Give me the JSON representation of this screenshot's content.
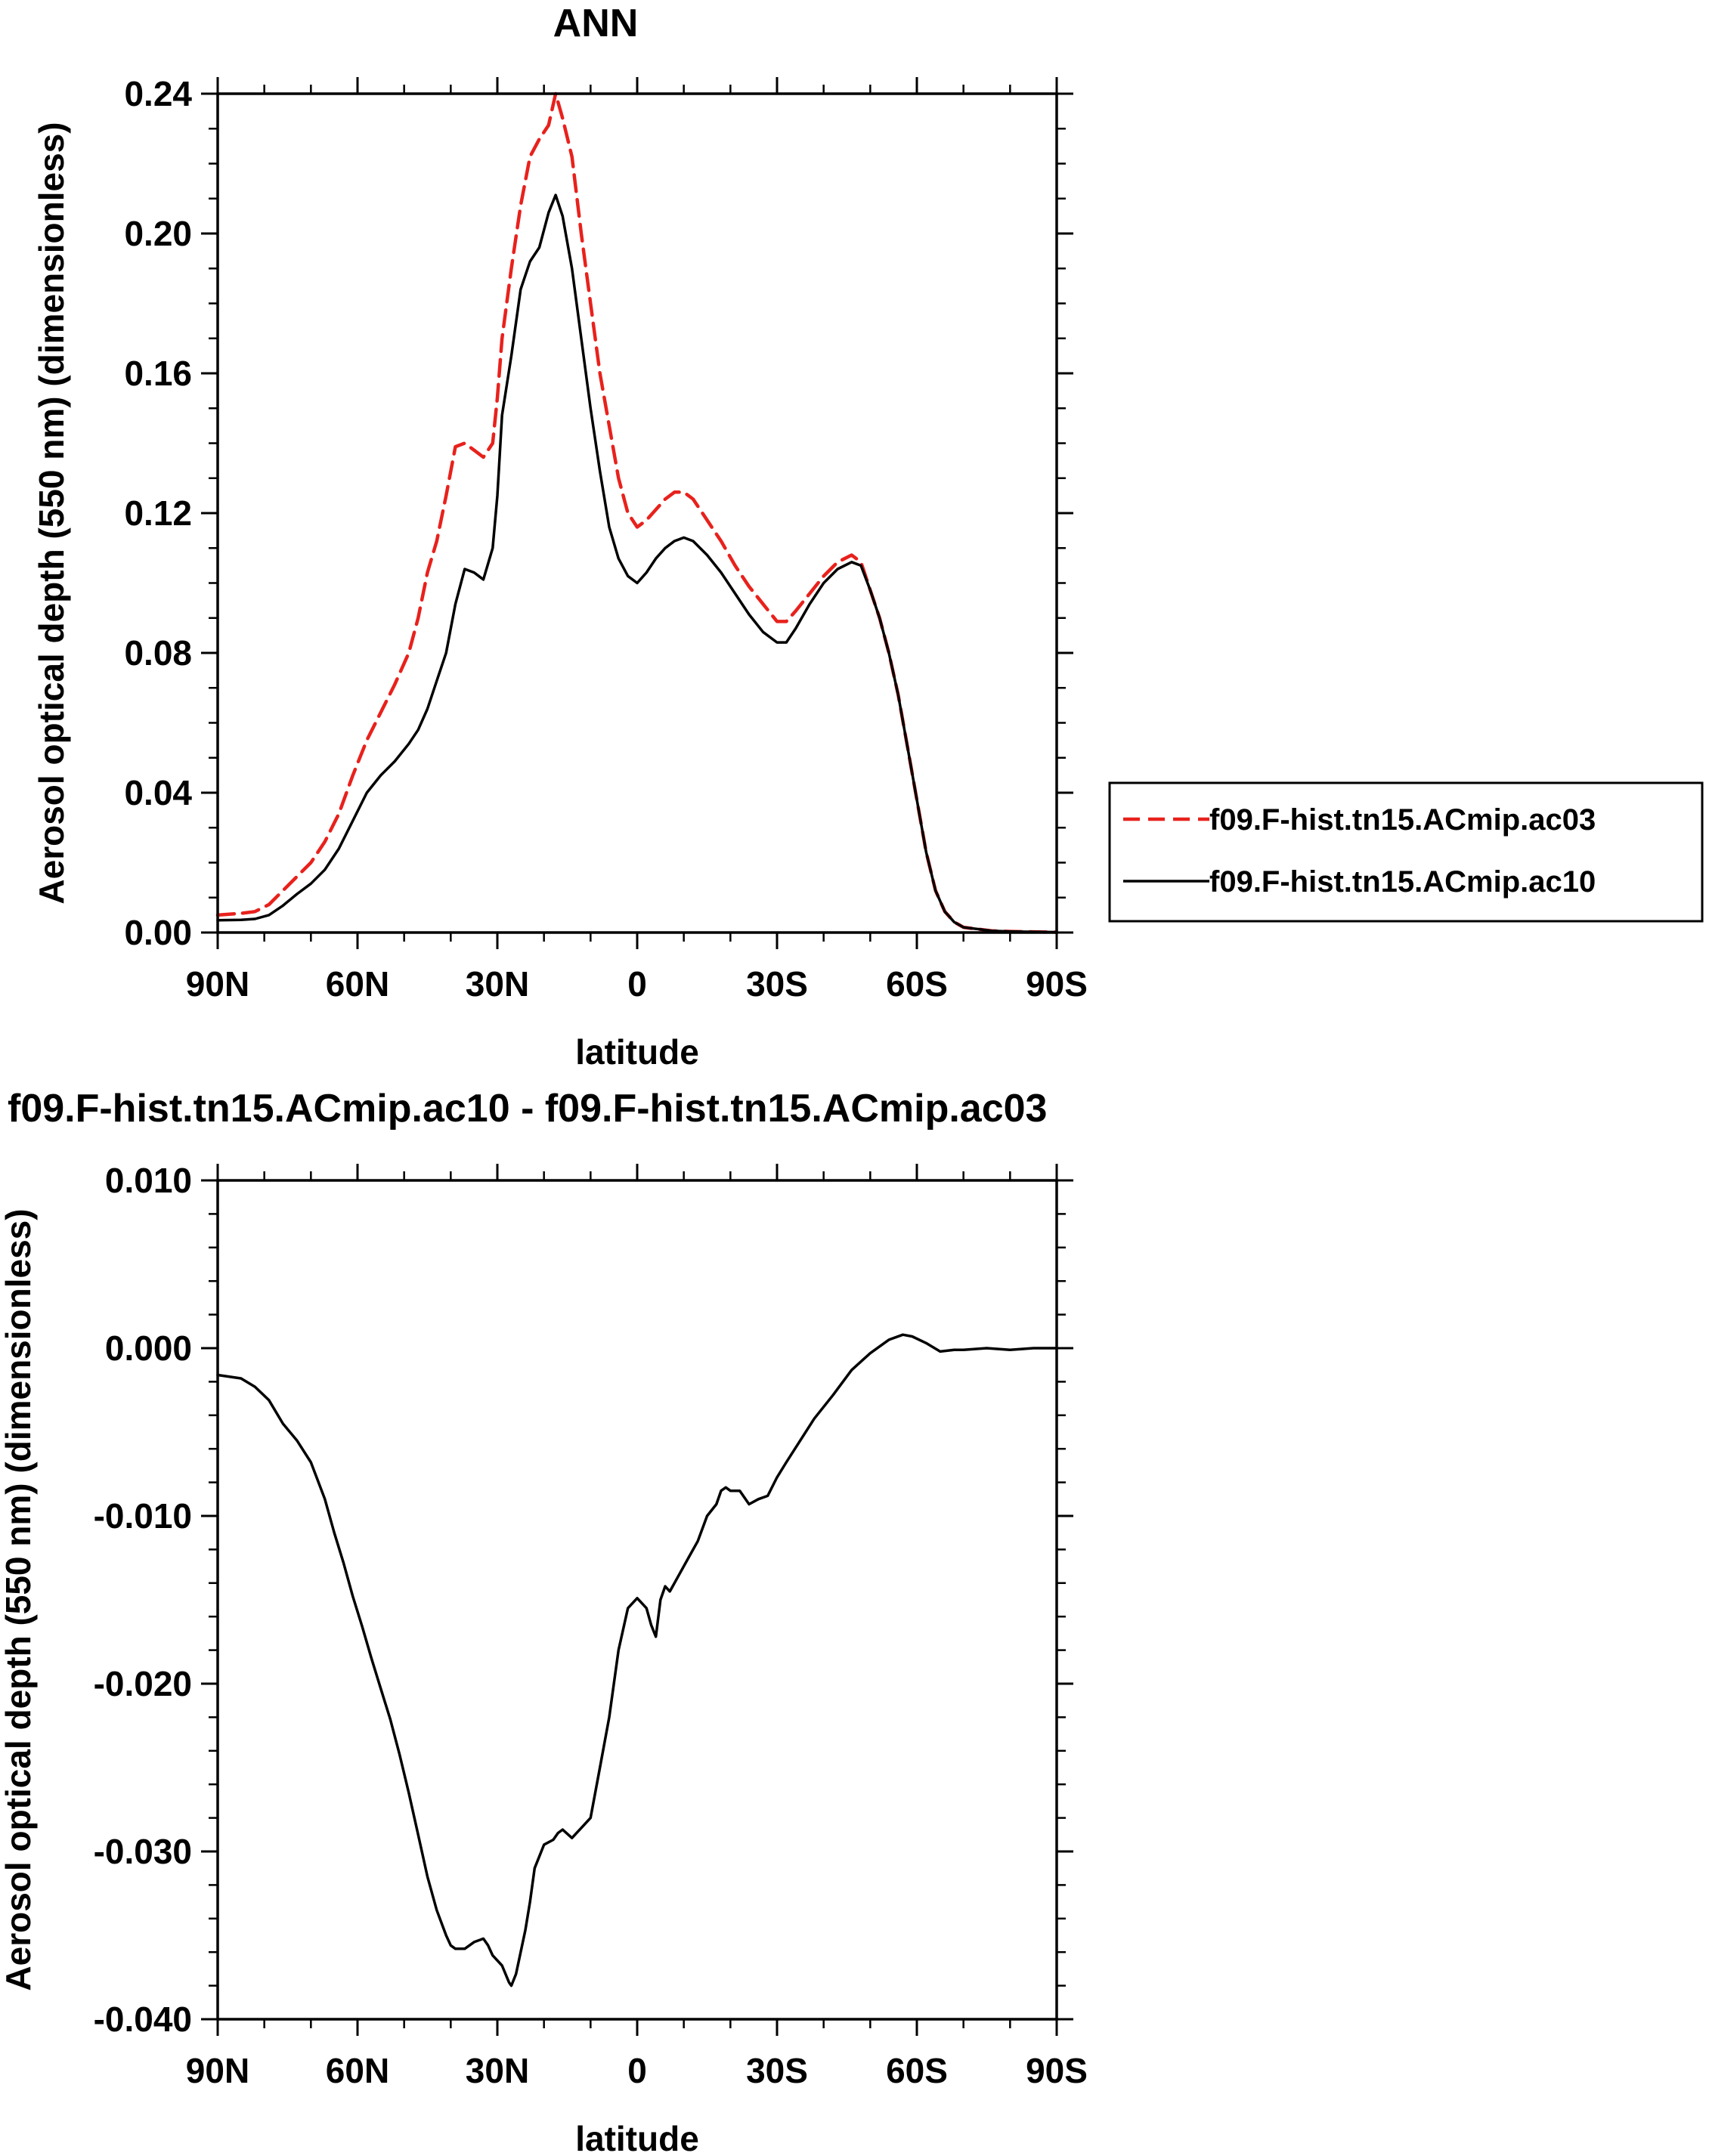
{
  "chart_data": [
    {
      "type": "line",
      "title": "ANN",
      "xlabel": "latitude",
      "ylabel": "Aerosol optical depth (550 nm) (dimensionless)",
      "xlim": [
        90,
        -90
      ],
      "ylim": [
        0,
        0.24
      ],
      "xticks": [
        {
          "value": 90,
          "label": "90N"
        },
        {
          "value": 60,
          "label": "60N"
        },
        {
          "value": 30,
          "label": "30N"
        },
        {
          "value": 0,
          "label": "0"
        },
        {
          "value": -30,
          "label": "30S"
        },
        {
          "value": -60,
          "label": "60S"
        },
        {
          "value": -90,
          "label": "90S"
        }
      ],
      "yticks": [
        {
          "value": 0.0,
          "label": "0.00"
        },
        {
          "value": 0.04,
          "label": "0.04"
        },
        {
          "value": 0.08,
          "label": "0.08"
        },
        {
          "value": 0.12,
          "label": "0.12"
        },
        {
          "value": 0.16,
          "label": "0.16"
        },
        {
          "value": 0.2,
          "label": "0.20"
        },
        {
          "value": 0.24,
          "label": "0.24"
        }
      ],
      "grid": false,
      "legend": "right",
      "series": [
        {
          "name": "f09.F-hist.tn15.ACmip.ac03",
          "color": "#e8211c",
          "dash": "dashed",
          "x": [
            90,
            85,
            82,
            79,
            76,
            73,
            70,
            67,
            64,
            61,
            58,
            55,
            52,
            49,
            47,
            45,
            43,
            41,
            39,
            37,
            35,
            33,
            31,
            30,
            29,
            27,
            25,
            23,
            21,
            19,
            17.5,
            16,
            14,
            12,
            10,
            8,
            6,
            4,
            2,
            0,
            -2,
            -4,
            -6,
            -8,
            -10,
            -12,
            -15,
            -18,
            -21,
            -24,
            -27,
            -30,
            -32,
            -34,
            -37,
            -40,
            -43,
            -46,
            -48,
            -50,
            -52,
            -54,
            -56,
            -58,
            -60,
            -62,
            -64,
            -66,
            -68,
            -70,
            -73,
            -76,
            -80,
            -85,
            -90
          ],
          "y": [
            0.005,
            0.0055,
            0.006,
            0.008,
            0.012,
            0.016,
            0.02,
            0.026,
            0.034,
            0.045,
            0.055,
            0.063,
            0.071,
            0.08,
            0.09,
            0.103,
            0.112,
            0.125,
            0.139,
            0.14,
            0.138,
            0.136,
            0.14,
            0.153,
            0.17,
            0.19,
            0.208,
            0.222,
            0.227,
            0.231,
            0.24,
            0.233,
            0.222,
            0.2,
            0.18,
            0.16,
            0.145,
            0.13,
            0.12,
            0.116,
            0.118,
            0.121,
            0.124,
            0.126,
            0.126,
            0.124,
            0.118,
            0.112,
            0.105,
            0.099,
            0.094,
            0.089,
            0.089,
            0.092,
            0.097,
            0.102,
            0.106,
            0.108,
            0.106,
            0.098,
            0.09,
            0.08,
            0.068,
            0.053,
            0.038,
            0.023,
            0.012,
            0.006,
            0.003,
            0.0015,
            0.001,
            0.0005,
            0.0003,
            0.0002,
            0.0001
          ]
        },
        {
          "name": "f09.F-hist.tn15.ACmip.ac10",
          "color": "#000000",
          "dash": "solid",
          "x": [
            90,
            85,
            82,
            79,
            76,
            73,
            70,
            67,
            64,
            61,
            58,
            55,
            52,
            49,
            47,
            45,
            43,
            41,
            39,
            37,
            35,
            33,
            31,
            30,
            29,
            27,
            25,
            23,
            21,
            19,
            17.5,
            16,
            14,
            12,
            10,
            8,
            6,
            4,
            2,
            0,
            -2,
            -4,
            -6,
            -8,
            -10,
            -12,
            -15,
            -18,
            -21,
            -24,
            -27,
            -30,
            -32,
            -34,
            -37,
            -40,
            -43,
            -46,
            -48,
            -50,
            -52,
            -54,
            -56,
            -58,
            -60,
            -62,
            -64,
            -66,
            -68,
            -70,
            -73,
            -76,
            -80,
            -85,
            -90
          ],
          "y": [
            0.0035,
            0.0036,
            0.0039,
            0.005,
            0.0077,
            0.011,
            0.014,
            0.018,
            0.024,
            0.032,
            0.04,
            0.045,
            0.049,
            0.054,
            0.058,
            0.064,
            0.072,
            0.08,
            0.094,
            0.104,
            0.103,
            0.101,
            0.11,
            0.125,
            0.148,
            0.165,
            0.184,
            0.192,
            0.196,
            0.206,
            0.211,
            0.205,
            0.19,
            0.17,
            0.15,
            0.132,
            0.116,
            0.107,
            0.102,
            0.1,
            0.103,
            0.107,
            0.11,
            0.112,
            0.113,
            0.112,
            0.108,
            0.103,
            0.097,
            0.091,
            0.086,
            0.083,
            0.083,
            0.087,
            0.094,
            0.1,
            0.104,
            0.106,
            0.105,
            0.098,
            0.09,
            0.08,
            0.068,
            0.053,
            0.038,
            0.023,
            0.012,
            0.006,
            0.003,
            0.0015,
            0.001,
            0.0005,
            0.0003,
            0.0002,
            0.0001
          ]
        }
      ]
    },
    {
      "type": "line",
      "title": "f09.F-hist.tn15.ACmip.ac10 - f09.F-hist.tn15.ACmip.ac03",
      "xlabel": "latitude",
      "ylabel": "Aerosol optical depth (550 nm) (dimensionless)",
      "xlim": [
        90,
        -90
      ],
      "ylim": [
        -0.04,
        0.01
      ],
      "xticks": [
        {
          "value": 90,
          "label": "90N"
        },
        {
          "value": 60,
          "label": "60N"
        },
        {
          "value": 30,
          "label": "30N"
        },
        {
          "value": 0,
          "label": "0"
        },
        {
          "value": -30,
          "label": "30S"
        },
        {
          "value": -60,
          "label": "60S"
        },
        {
          "value": -90,
          "label": "90S"
        }
      ],
      "yticks": [
        {
          "value": 0.01,
          "label": "0.010"
        },
        {
          "value": 0.0,
          "label": "0.000"
        },
        {
          "value": -0.01,
          "label": "-0.010"
        },
        {
          "value": -0.02,
          "label": "-0.020"
        },
        {
          "value": -0.03,
          "label": "-0.030"
        },
        {
          "value": -0.04,
          "label": "-0.040"
        }
      ],
      "grid": false,
      "series": [
        {
          "color": "#000000",
          "dash": "solid",
          "x": [
            90,
            85,
            82,
            79,
            76,
            73,
            70,
            67,
            65,
            63,
            61,
            59,
            57,
            55,
            53,
            51,
            49,
            47,
            45,
            43,
            41,
            40,
            39,
            37,
            35,
            33,
            32,
            31,
            29,
            27.5,
            27,
            26,
            24,
            23,
            22,
            20,
            18,
            17,
            16,
            14,
            12,
            10,
            8,
            6,
            4,
            2,
            0,
            -2,
            -3,
            -4,
            -5,
            -6,
            -7,
            -9,
            -11,
            -13,
            -15,
            -17,
            -18,
            -19,
            -20,
            -22,
            -24,
            -26,
            -28,
            -30,
            -32,
            -35,
            -38,
            -42,
            -46,
            -50,
            -54,
            -57,
            -59,
            -62,
            -65,
            -68,
            -70,
            -75,
            -80,
            -85,
            -90
          ],
          "y": [
            -0.0016,
            -0.0018,
            -0.0023,
            -0.0031,
            -0.0045,
            -0.0055,
            -0.0068,
            -0.009,
            -0.011,
            -0.0128,
            -0.0148,
            -0.0166,
            -0.0185,
            -0.0203,
            -0.0221,
            -0.0242,
            -0.0265,
            -0.029,
            -0.0315,
            -0.0335,
            -0.035,
            -0.0356,
            -0.0358,
            -0.0358,
            -0.0354,
            -0.0352,
            -0.0356,
            -0.0362,
            -0.0368,
            -0.0378,
            -0.038,
            -0.0373,
            -0.0347,
            -0.033,
            -0.031,
            -0.0296,
            -0.0293,
            -0.0289,
            -0.0287,
            -0.0292,
            -0.0286,
            -0.028,
            -0.025,
            -0.022,
            -0.018,
            -0.0155,
            -0.0149,
            -0.0155,
            -0.0165,
            -0.0172,
            -0.015,
            -0.0142,
            -0.0145,
            -0.0135,
            -0.0125,
            -0.0115,
            -0.01,
            -0.0093,
            -0.0085,
            -0.0083,
            -0.0085,
            -0.0085,
            -0.0093,
            -0.009,
            -0.0088,
            -0.0077,
            -0.0068,
            -0.0055,
            -0.0042,
            -0.0028,
            -0.0013,
            -0.0003,
            0.0005,
            0.0008,
            0.0007,
            0.0003,
            -0.0002,
            -0.0001,
            -0.0001,
            0.0,
            -0.0001,
            0.0,
            0.0
          ]
        }
      ]
    }
  ]
}
